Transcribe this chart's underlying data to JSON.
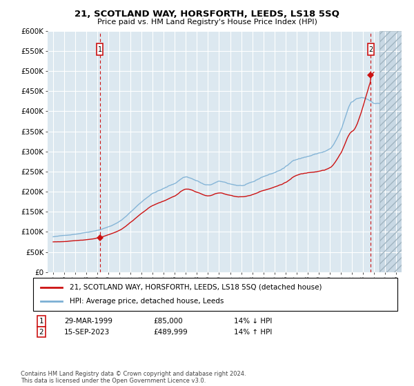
{
  "title": "21, SCOTLAND WAY, HORSFORTH, LEEDS, LS18 5SQ",
  "subtitle": "Price paid vs. HM Land Registry's House Price Index (HPI)",
  "legend_line1": "21, SCOTLAND WAY, HORSFORTH, LEEDS, LS18 5SQ (detached house)",
  "legend_line2": "HPI: Average price, detached house, Leeds",
  "sale1_label": "1",
  "sale1_date": "29-MAR-1999",
  "sale1_price": "£85,000",
  "sale1_hpi": "14% ↓ HPI",
  "sale1_year": 1999.23,
  "sale1_value": 85000,
  "sale2_label": "2",
  "sale2_date": "15-SEP-2023",
  "sale2_price": "£489,999",
  "sale2_hpi": "14% ↑ HPI",
  "sale2_year": 2023.71,
  "sale2_value": 489999,
  "hpi_color": "#7bafd4",
  "price_color": "#cc1111",
  "bg_color": "#dce8f0",
  "ylim": [
    0,
    600000
  ],
  "xlim_start": 1994.5,
  "xlim_end": 2026.5,
  "hatch_start": 2024.5,
  "footer": "Contains HM Land Registry data © Crown copyright and database right 2024.\nThis data is licensed under the Open Government Licence v3.0."
}
